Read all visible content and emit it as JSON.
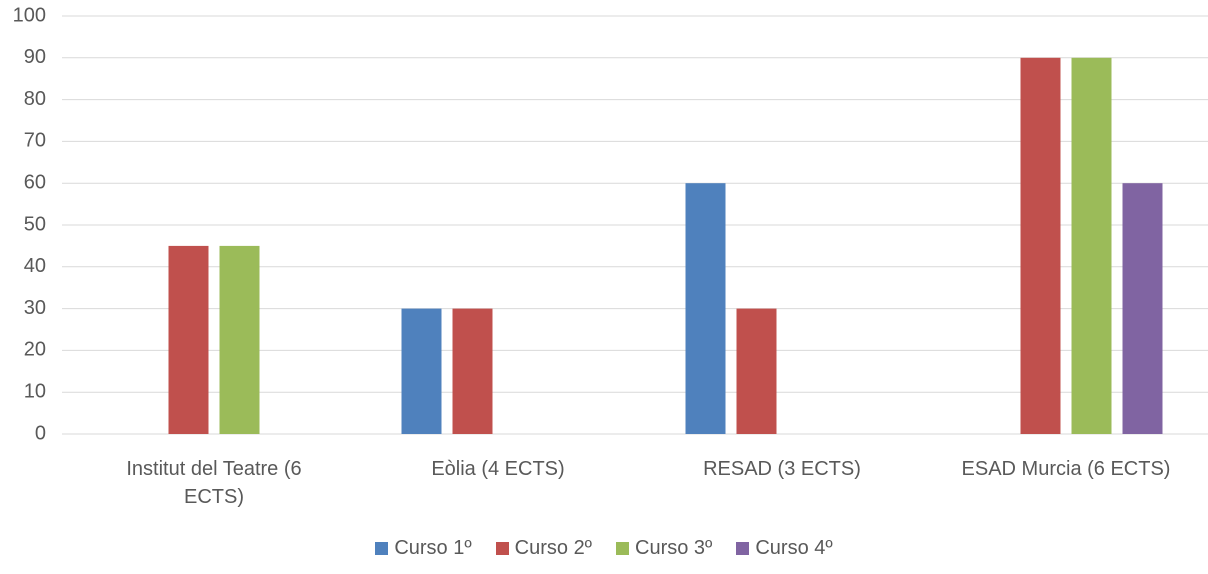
{
  "chart_data": {
    "type": "bar",
    "categories": [
      "Institut del Teatre (6 ECTS)",
      "Eòlia (4 ECTS)",
      "RESAD (3 ECTS)",
      "ESAD Murcia (6 ECTS)"
    ],
    "series": [
      {
        "name": "Curso 1º",
        "color": "#4f81bd",
        "values": [
          null,
          30,
          60,
          null
        ]
      },
      {
        "name": "Curso 2º",
        "color": "#c0504d",
        "values": [
          45,
          30,
          30,
          90
        ]
      },
      {
        "name": "Curso 3º",
        "color": "#9bbb59",
        "values": [
          45,
          null,
          null,
          90
        ]
      },
      {
        "name": "Curso 4º",
        "color": "#8064a2",
        "values": [
          null,
          null,
          null,
          60
        ]
      }
    ],
    "ylim": [
      0,
      100
    ],
    "yticks": [
      0,
      10,
      20,
      30,
      40,
      50,
      60,
      70,
      80,
      90,
      100
    ],
    "grid": true,
    "legend": "bottom"
  }
}
